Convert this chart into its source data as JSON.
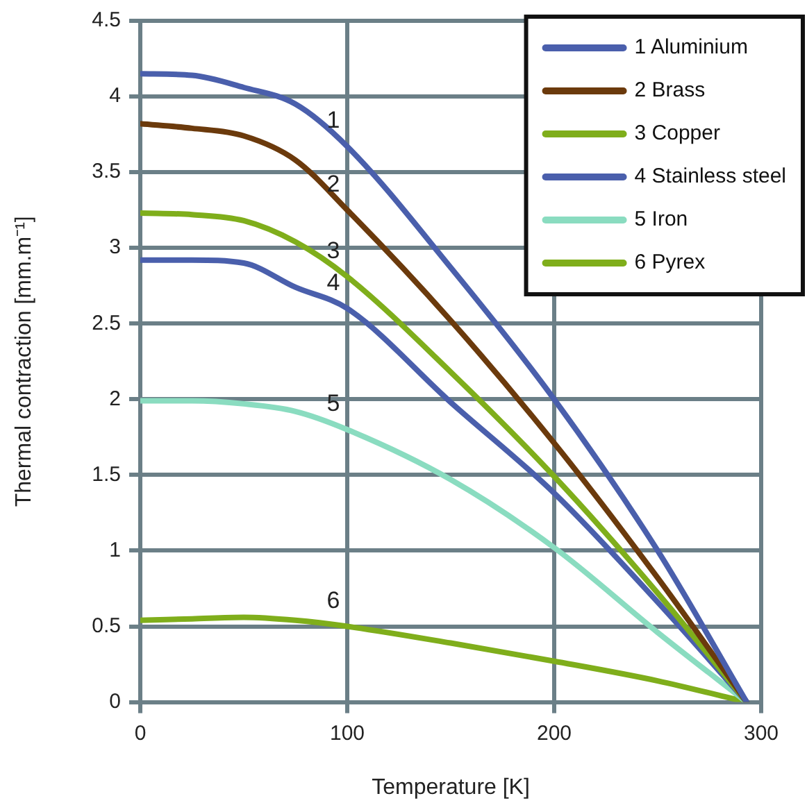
{
  "chart_data": {
    "type": "line",
    "xlabel": "Temperature [K]",
    "ylabel": "Thermal contraction [mm.m⁻¹]",
    "x": [
      0,
      25,
      50,
      75,
      100,
      150,
      200,
      250,
      293
    ],
    "series": [
      {
        "name": "1 Aluminium",
        "color": "#4a5fac",
        "values": [
          4.15,
          4.14,
          4.06,
          3.95,
          3.67,
          2.87,
          2.0,
          1.0,
          0
        ]
      },
      {
        "name": "2 Brass",
        "color": "#6b3a0c",
        "values": [
          3.82,
          3.79,
          3.74,
          3.58,
          3.25,
          2.52,
          1.71,
          0.82,
          0
        ]
      },
      {
        "name": "3 Copper",
        "color": "#7fae1b",
        "values": [
          3.23,
          3.22,
          3.18,
          3.04,
          2.81,
          2.18,
          1.49,
          0.72,
          0
        ]
      },
      {
        "name": "4 Stainless steel",
        "color": "#4a5fac",
        "values": [
          2.92,
          2.92,
          2.9,
          2.74,
          2.6,
          1.98,
          1.38,
          0.66,
          0
        ]
      },
      {
        "name": "5 Iron",
        "color": "#8adcc0",
        "values": [
          1.99,
          1.99,
          1.97,
          1.92,
          1.8,
          1.47,
          1.02,
          0.46,
          0
        ]
      },
      {
        "name": "6 Pyrex",
        "color": "#7fae1b",
        "values": [
          0.54,
          0.55,
          0.56,
          0.54,
          0.5,
          0.39,
          0.27,
          0.14,
          0
        ]
      }
    ],
    "xlim": [
      0,
      300
    ],
    "xticks": [
      0,
      100,
      200,
      300
    ],
    "ylim": [
      0,
      4.5
    ],
    "yticks": [
      0,
      0.5,
      1,
      1.5,
      2,
      2.5,
      3,
      3.5,
      4,
      4.5
    ],
    "grid": true,
    "legend": "top right",
    "marker": "none",
    "line_style": "solid",
    "annotations": [
      "1",
      "2",
      "3",
      "4",
      "5",
      "6"
    ]
  }
}
